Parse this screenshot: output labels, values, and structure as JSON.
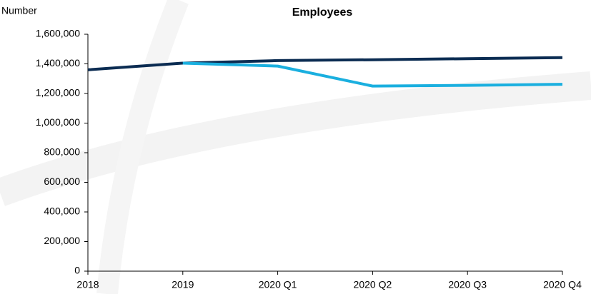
{
  "chart_data": {
    "type": "line",
    "title": "Employees",
    "y_label": "Number",
    "categories": [
      "2018",
      "2019",
      "2020 Q1",
      "2020 Q2",
      "2020 Q3",
      "2020 Q4"
    ],
    "series": [
      {
        "color": "#0b2c52",
        "values": [
          1360000,
          1405000,
          1422000,
          1428000,
          1435000,
          1442000
        ]
      },
      {
        "color": "#1aafdf",
        "values": [
          null,
          1405000,
          1385000,
          1250000,
          1255000,
          1262000
        ]
      }
    ],
    "ylim": [
      0,
      1600000
    ],
    "yticks": [
      0,
      {
        "value": 200000,
        "label": "200,000"
      },
      {
        "value": 400000,
        "label": "400,000"
      },
      {
        "value": 600000,
        "label": "600,000"
      },
      {
        "value": 800000,
        "label": "800,000"
      },
      {
        "value": 1000000,
        "label": "1,000,000"
      },
      {
        "value": 1200000,
        "label": "1,200,000"
      },
      {
        "value": 1400000,
        "label": "1,400,000"
      },
      {
        "value": 1600000,
        "label": "1,600,000"
      }
    ],
    "grid": false
  }
}
